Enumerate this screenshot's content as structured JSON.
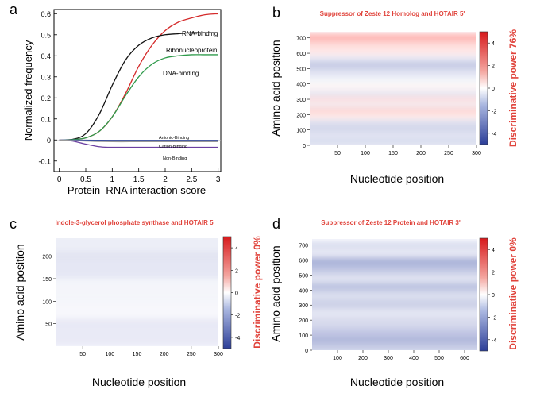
{
  "colors": {
    "red": "#d42a2a",
    "blue": "#3b4f9e",
    "black": "#111111",
    "green": "#2e9a4a",
    "purple": "#6b3fa0",
    "heat_red": "#e0433b",
    "heat_blue": "#3f56a8"
  },
  "chart_data": [
    {
      "panel": "a",
      "type": "line",
      "xlabel": "Protein–RNA interaction score",
      "ylabel": "Normalized frequency",
      "xlim": [
        -0.1,
        3.05
      ],
      "ylim": [
        -0.15,
        0.62
      ],
      "xticks": [
        "0",
        "0.5",
        "1",
        "1.5",
        "2",
        "2.5",
        "3"
      ],
      "yticks": [
        "-0.1",
        "0",
        "0.1",
        "0.2",
        "0.3",
        "0.4",
        "0.5",
        "0.6"
      ],
      "series": [
        {
          "name": "RNA-binding",
          "color": "#d42a2a",
          "x": [
            0,
            0.25,
            0.5,
            0.75,
            1,
            1.25,
            1.5,
            1.75,
            2,
            2.25,
            2.5,
            2.75,
            3
          ],
          "values": [
            0,
            0.002,
            0.01,
            0.04,
            0.11,
            0.22,
            0.35,
            0.45,
            0.52,
            0.56,
            0.58,
            0.595,
            0.6
          ]
        },
        {
          "name": "Ribonucleoprotein",
          "color": "#111111",
          "x": [
            0,
            0.25,
            0.5,
            0.75,
            1,
            1.25,
            1.5,
            1.75,
            2,
            2.25,
            2.5,
            2.75,
            3
          ],
          "values": [
            0,
            0.003,
            0.03,
            0.12,
            0.26,
            0.38,
            0.45,
            0.485,
            0.5,
            0.505,
            0.51,
            0.51,
            0.51
          ]
        },
        {
          "name": "DNA-binding",
          "color": "#2e9a4a",
          "x": [
            0,
            0.25,
            0.5,
            0.75,
            1,
            1.25,
            1.5,
            1.75,
            2,
            2.25,
            2.5,
            2.75,
            3
          ],
          "values": [
            0,
            0.002,
            0.01,
            0.04,
            0.11,
            0.21,
            0.3,
            0.36,
            0.39,
            0.4,
            0.405,
            0.405,
            0.405
          ]
        },
        {
          "name": "Anionic-Binding",
          "color": "#3b4f9e",
          "x": [
            0,
            0.5,
            1,
            1.5,
            2,
            2.5,
            3
          ],
          "values": [
            0,
            -0.001,
            -0.002,
            -0.002,
            -0.002,
            -0.002,
            -0.002
          ]
        },
        {
          "name": "Cation-Binding",
          "color": "#6b3fa0",
          "x": [
            0,
            0.25,
            0.5,
            0.75,
            1,
            1.5,
            2,
            2.5,
            3
          ],
          "values": [
            0,
            -0.005,
            -0.02,
            -0.032,
            -0.035,
            -0.035,
            -0.035,
            -0.035,
            -0.035
          ]
        },
        {
          "name": "Non-Binding",
          "color": "#9a9a9a",
          "x": [
            0,
            0.5,
            1,
            1.5,
            2,
            2.5,
            3
          ],
          "values": [
            0,
            -0.005,
            -0.008,
            -0.008,
            -0.008,
            -0.008,
            -0.008
          ]
        }
      ],
      "annotations": [
        "RNA-binding",
        "Ribonucleoprotein",
        "DNA-binding",
        "Anionic-Binding",
        "Cation-Binding",
        "Non-Binding"
      ]
    },
    {
      "panel": "b",
      "type": "heatmap",
      "title": "Suppressor of Zeste 12 Homolog and HOTAIR 5'",
      "xlabel": "Nucleotide position",
      "ylabel": "Amino acid position",
      "xlim": [
        0,
        300
      ],
      "ylim": [
        0,
        740
      ],
      "xticks": [
        "50",
        "100",
        "150",
        "200",
        "250",
        "300"
      ],
      "yticks": [
        "0",
        "100",
        "200",
        "300",
        "400",
        "500",
        "600",
        "700"
      ],
      "colorbar_label": "Discriminative power 76%",
      "colorbar_ticks": [
        "4",
        "2",
        "0",
        "-2",
        "-4"
      ],
      "bands": [
        {
          "y": 700,
          "value": 2.2
        },
        {
          "y": 650,
          "value": 1.0
        },
        {
          "y": 600,
          "value": 0.6
        },
        {
          "y": 560,
          "value": -0.6
        },
        {
          "y": 520,
          "value": -1.6
        },
        {
          "y": 470,
          "value": -0.8
        },
        {
          "y": 420,
          "value": -0.3
        },
        {
          "y": 370,
          "value": 0.3
        },
        {
          "y": 330,
          "value": -0.7
        },
        {
          "y": 290,
          "value": 0.9
        },
        {
          "y": 250,
          "value": -0.4
        },
        {
          "y": 220,
          "value": 1.2
        },
        {
          "y": 180,
          "value": 0.5
        },
        {
          "y": 140,
          "value": -0.9
        },
        {
          "y": 100,
          "value": -1.2
        },
        {
          "y": 60,
          "value": -0.7
        },
        {
          "y": 20,
          "value": -1.0
        }
      ]
    },
    {
      "panel": "c",
      "type": "heatmap",
      "title": "Indole-3-glycerol phosphate synthase and HOTAIR 5'",
      "xlabel": "Nucleotide position",
      "ylabel": "Amino acid position",
      "xlim": [
        0,
        300
      ],
      "ylim": [
        0,
        240
      ],
      "xticks": [
        "50",
        "100",
        "150",
        "200",
        "250",
        "300"
      ],
      "yticks": [
        "50",
        "100",
        "150",
        "200"
      ],
      "colorbar_label": "Discriminative power 0%",
      "colorbar_ticks": [
        "4",
        "2",
        "0",
        "-2",
        "-4"
      ],
      "bands": [
        {
          "y": 220,
          "value": -0.5
        },
        {
          "y": 180,
          "value": -0.7
        },
        {
          "y": 120,
          "value": -0.3
        },
        {
          "y": 70,
          "value": -0.2
        },
        {
          "y": 30,
          "value": -0.6
        }
      ]
    },
    {
      "panel": "d",
      "type": "heatmap",
      "title": "Suppressor of Zeste 12 Protein  and HOTAIR 3'",
      "xlabel": "Nucleotide position",
      "ylabel": "Amino acid position",
      "xlim": [
        0,
        650
      ],
      "ylim": [
        0,
        740
      ],
      "xticks": [
        "100",
        "200",
        "300",
        "400",
        "500",
        "600"
      ],
      "yticks": [
        "0",
        "100",
        "200",
        "300",
        "400",
        "500",
        "600",
        "700"
      ],
      "colorbar_label": "Discriminative power 0%",
      "colorbar_ticks": [
        "4",
        "2",
        "0",
        "-2",
        "-4"
      ],
      "bands": [
        {
          "y": 690,
          "value": -1.0
        },
        {
          "y": 640,
          "value": -0.6
        },
        {
          "y": 580,
          "value": -2.4
        },
        {
          "y": 530,
          "value": -1.6
        },
        {
          "y": 470,
          "value": -0.8
        },
        {
          "y": 410,
          "value": -1.9
        },
        {
          "y": 360,
          "value": -0.9
        },
        {
          "y": 300,
          "value": -1.4
        },
        {
          "y": 240,
          "value": -0.7
        },
        {
          "y": 180,
          "value": -1.1
        },
        {
          "y": 110,
          "value": -1.7
        },
        {
          "y": 50,
          "value": -2.2
        },
        {
          "y": 10,
          "value": -1.3
        }
      ]
    }
  ],
  "panel_letters": {
    "a": "a",
    "b": "b",
    "c": "c",
    "d": "d"
  }
}
